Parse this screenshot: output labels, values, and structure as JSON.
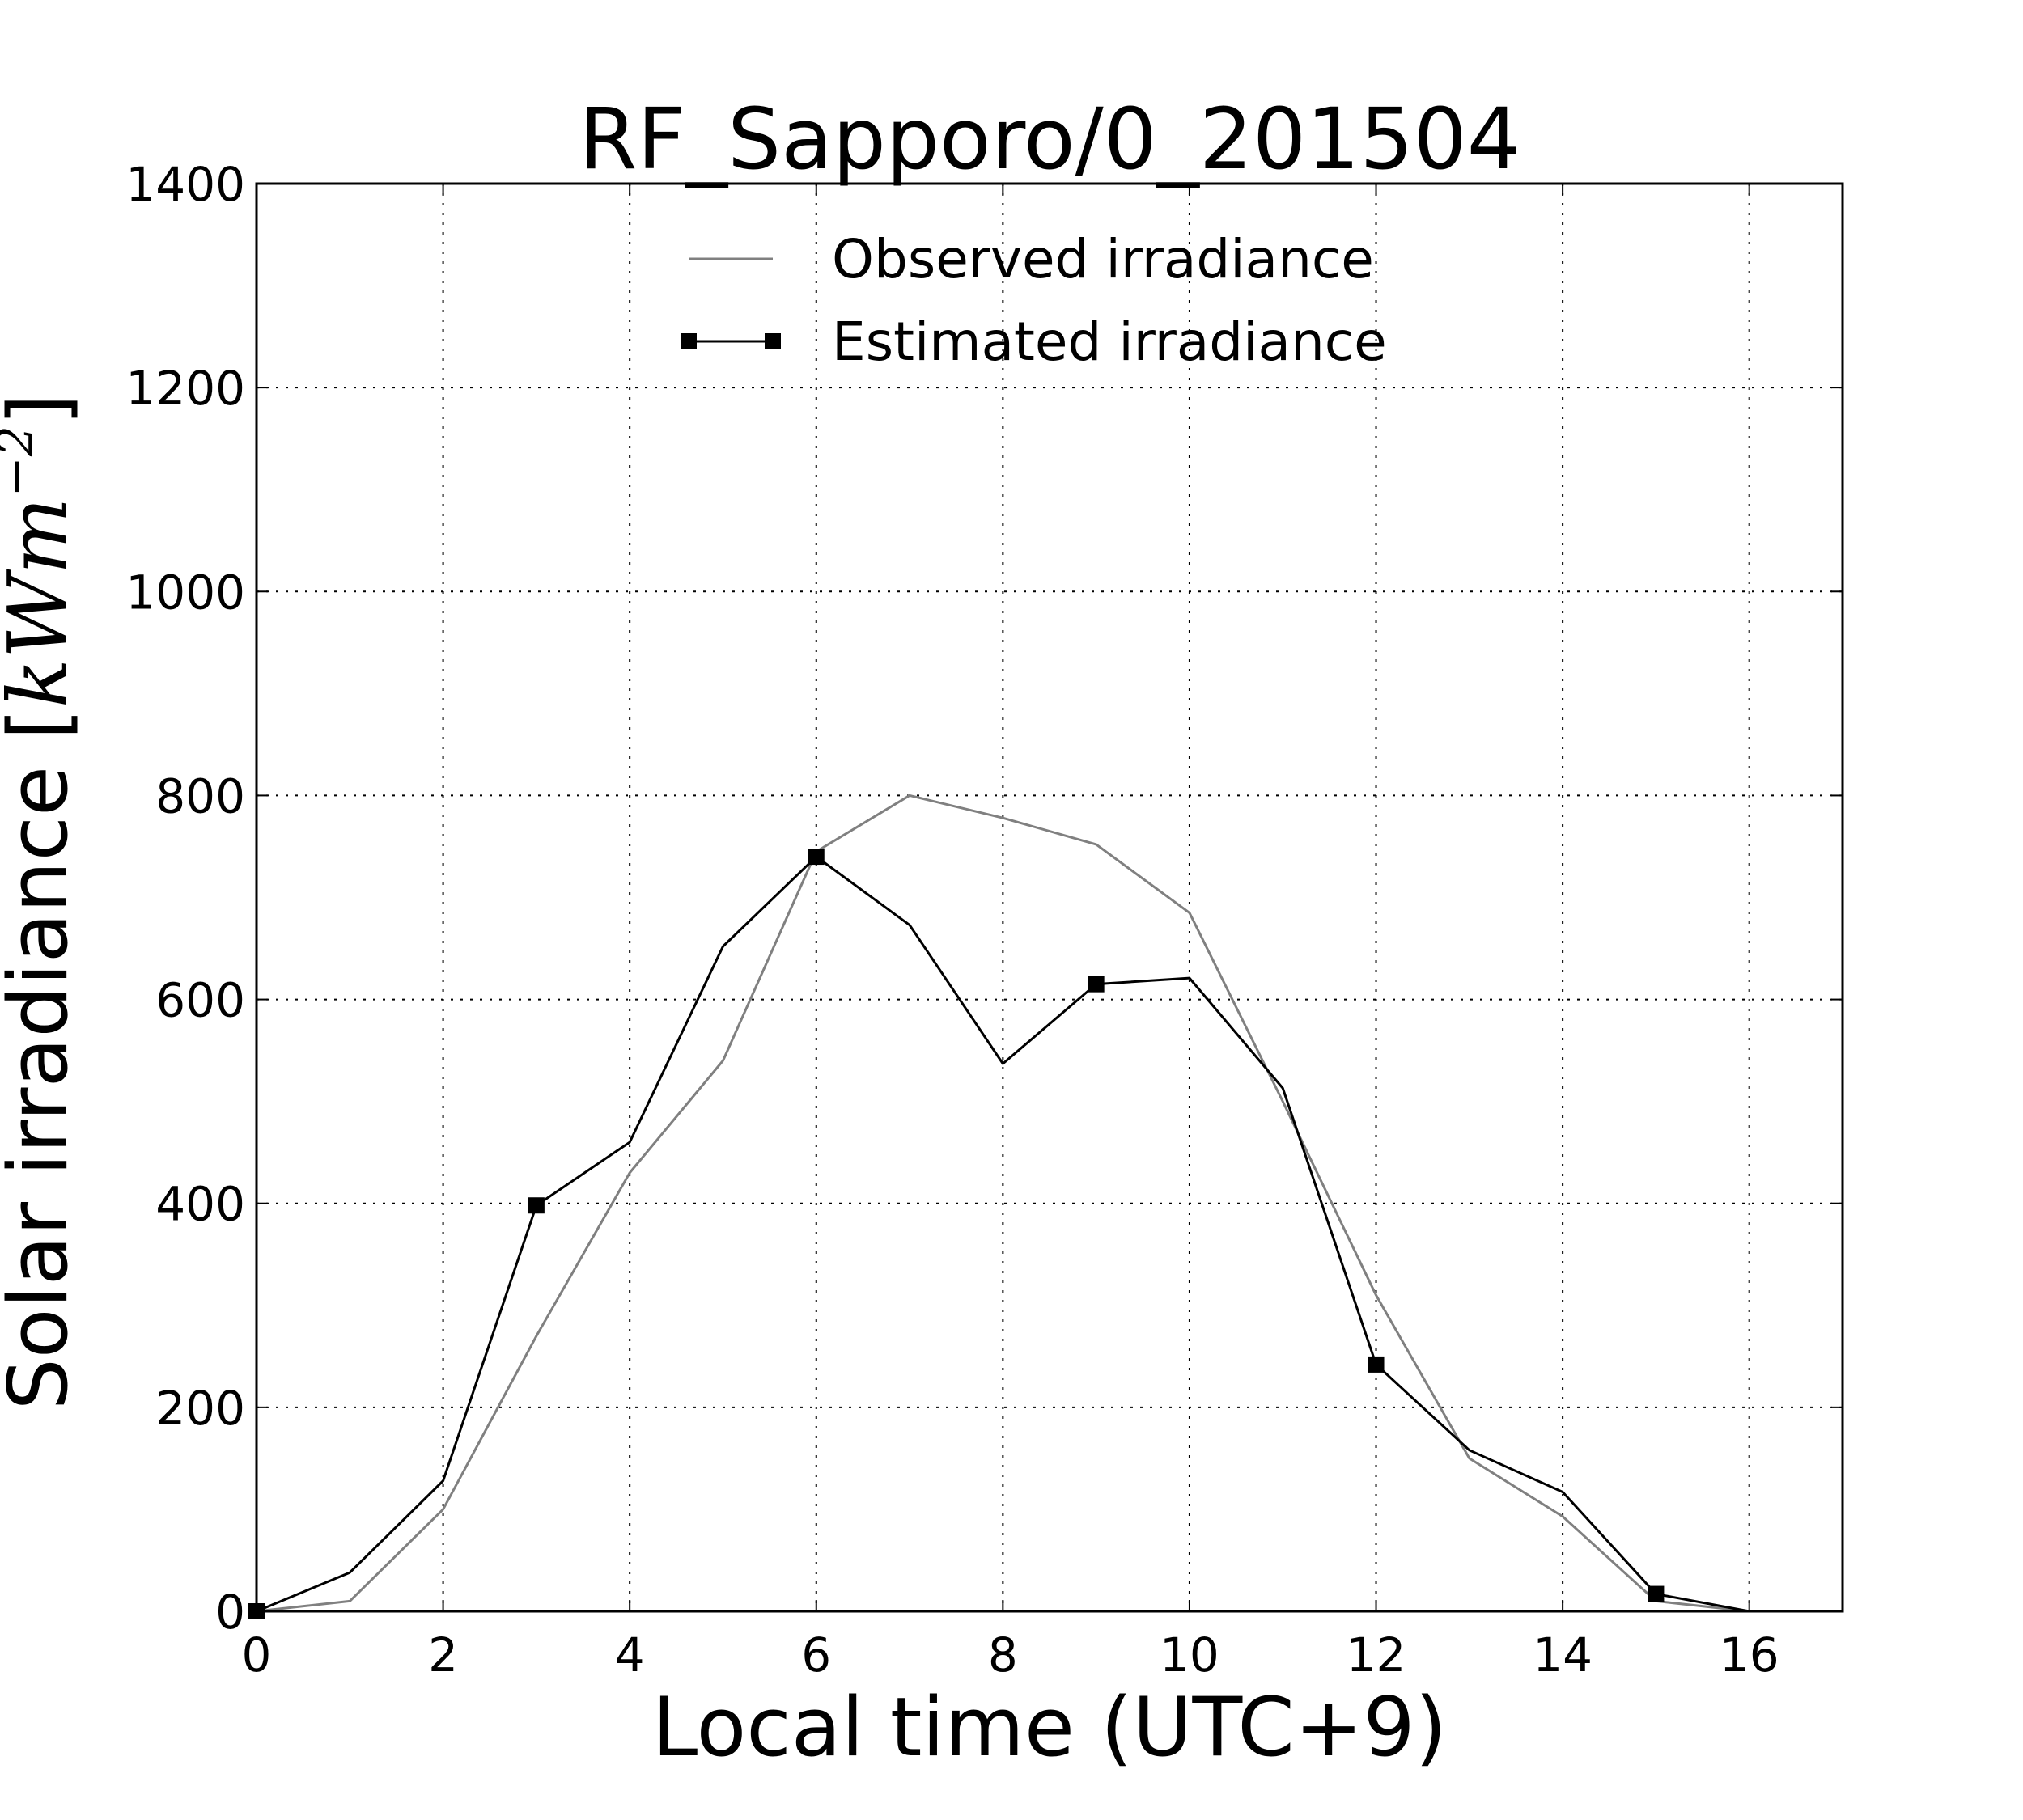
{
  "chart_data": {
    "type": "line",
    "title": "RF_Sapporo/0_201504",
    "xlabel": "Local time (UTC+9)",
    "ylabel": {
      "text": "Solar irradiance ",
      "unit_open": "[",
      "unit_kw": "kWm",
      "unit_exp": "−2",
      "unit_close": "]"
    },
    "xlim": [
      0,
      17
    ],
    "ylim": [
      0,
      1400
    ],
    "x_ticks": [
      0,
      2,
      4,
      6,
      8,
      10,
      12,
      14,
      16
    ],
    "y_ticks": [
      0,
      200,
      400,
      600,
      800,
      1000,
      1200,
      1400
    ],
    "grid": true,
    "legend_position": "top-center",
    "x": [
      0,
      1,
      2,
      3,
      4,
      5,
      6,
      7,
      8,
      9,
      10,
      11,
      12,
      13,
      14,
      15,
      16,
      17
    ],
    "series": [
      {
        "name": "Observed irradiance",
        "color": "#808080",
        "marker": "none",
        "values": [
          0,
          10,
          100,
          270,
          430,
          540,
          745,
          800,
          778,
          752,
          685,
          500,
          310,
          150,
          93,
          10,
          0,
          0
        ]
      },
      {
        "name": "Estimated irradiance",
        "color": "#000000",
        "marker": "square",
        "marker_every": 3,
        "values": [
          0,
          38,
          128,
          398,
          460,
          652,
          740,
          673,
          537,
          615,
          621,
          513,
          242,
          158,
          117,
          17,
          0,
          0
        ]
      }
    ]
  }
}
